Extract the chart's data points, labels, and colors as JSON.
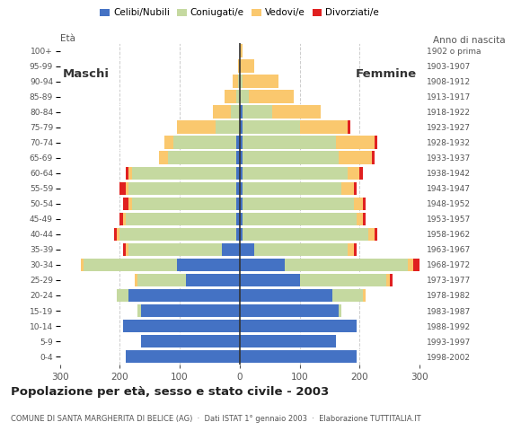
{
  "age_groups": [
    "0-4",
    "5-9",
    "10-14",
    "15-19",
    "20-24",
    "25-29",
    "30-34",
    "35-39",
    "40-44",
    "45-49",
    "50-54",
    "55-59",
    "60-64",
    "65-69",
    "70-74",
    "75-79",
    "80-84",
    "85-89",
    "90-94",
    "95-99",
    "100+"
  ],
  "birth_years": [
    "1998-2002",
    "1993-1997",
    "1988-1992",
    "1983-1987",
    "1978-1982",
    "1973-1977",
    "1968-1972",
    "1963-1967",
    "1958-1962",
    "1953-1957",
    "1948-1952",
    "1943-1947",
    "1938-1942",
    "1933-1937",
    "1928-1932",
    "1923-1927",
    "1918-1922",
    "1913-1917",
    "1908-1912",
    "1903-1907",
    "1902 o prima"
  ],
  "males": {
    "celibe": [
      190,
      165,
      195,
      165,
      185,
      90,
      105,
      30,
      5,
      5,
      5,
      5,
      5,
      5,
      5,
      0,
      0,
      0,
      0,
      0,
      0
    ],
    "coniugato": [
      0,
      0,
      0,
      5,
      20,
      80,
      155,
      155,
      195,
      185,
      175,
      180,
      175,
      115,
      105,
      40,
      15,
      5,
      2,
      0,
      0
    ],
    "vedovo": [
      0,
      0,
      0,
      0,
      0,
      5,
      5,
      5,
      5,
      5,
      5,
      5,
      5,
      15,
      15,
      65,
      30,
      20,
      10,
      2,
      0
    ],
    "divorziato": [
      0,
      0,
      0,
      0,
      0,
      0,
      0,
      5,
      5,
      5,
      10,
      10,
      5,
      0,
      0,
      0,
      0,
      0,
      0,
      0,
      0
    ]
  },
  "females": {
    "celibe": [
      195,
      160,
      195,
      165,
      155,
      100,
      75,
      25,
      5,
      5,
      5,
      5,
      5,
      5,
      5,
      5,
      5,
      0,
      0,
      0,
      0
    ],
    "coniugato": [
      0,
      0,
      0,
      5,
      50,
      145,
      205,
      155,
      210,
      190,
      185,
      165,
      175,
      160,
      155,
      95,
      50,
      15,
      5,
      0,
      0
    ],
    "vedovo": [
      0,
      0,
      0,
      0,
      5,
      5,
      10,
      10,
      10,
      10,
      15,
      20,
      20,
      55,
      65,
      80,
      80,
      75,
      60,
      25,
      5
    ],
    "divorziato": [
      0,
      0,
      0,
      0,
      0,
      5,
      10,
      5,
      5,
      5,
      5,
      5,
      5,
      5,
      5,
      5,
      0,
      0,
      0,
      0,
      0
    ]
  },
  "colors": {
    "celibe": "#4472c4",
    "coniugato": "#c5d9a0",
    "vedovo": "#fac86e",
    "divorziato": "#e02020"
  },
  "legend_labels": [
    "Celibi/Nubili",
    "Coniugati/e",
    "Vedovi/e",
    "Divorziati/e"
  ],
  "xlim": 300,
  "title": "Popolazione per età, sesso e stato civile - 2003",
  "subtitle": "COMUNE DI SANTA MARGHERITA DI BELICE (AG)  ·  Dati ISTAT 1° gennaio 2003  ·  Elaborazione TUTTITALIA.IT",
  "ylabel_left": "Età",
  "ylabel_right": "Anno di nascita",
  "xlabel_left": "Maschi",
  "xlabel_right": "Femmine",
  "background_color": "#ffffff",
  "bar_height": 0.85
}
